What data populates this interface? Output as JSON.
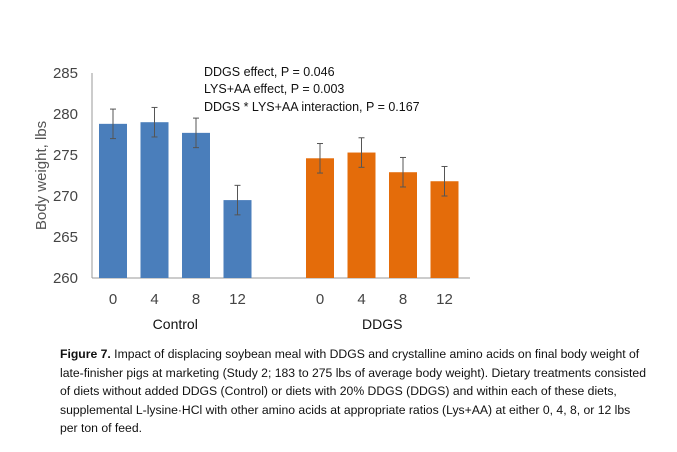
{
  "chart_data": {
    "type": "bar",
    "ylabel": "Body weight, lbs",
    "ylim": [
      260,
      285
    ],
    "yticks": [
      260,
      265,
      270,
      275,
      280,
      285
    ],
    "groups": [
      {
        "name": "Control",
        "color": "#4a7ebb",
        "categories": [
          "0",
          "4",
          "8",
          "12"
        ],
        "values": [
          278.8,
          279.0,
          277.7,
          269.5
        ],
        "errors": [
          1.8,
          1.8,
          1.8,
          1.8
        ]
      },
      {
        "name": "DDGS",
        "color": "#e46c0a",
        "categories": [
          "0",
          "4",
          "8",
          "12"
        ],
        "values": [
          274.6,
          275.3,
          272.9,
          271.8
        ],
        "errors": [
          1.8,
          1.8,
          1.8,
          1.8
        ]
      }
    ],
    "annotations": [
      "DDGS effect, P = 0.046",
      "LYS+AA effect, P = 0.003",
      "DDGS * LYS+AA interaction, P = 0.167"
    ]
  },
  "caption": {
    "label": "Figure 7.",
    "text": " Impact of displacing soybean meal with DDGS and crystalline amino acids on final body weight of late-finisher pigs at marketing (Study 2; 183 to 275 lbs of average body weight). Dietary treatments consisted of diets without added DDGS (Control) or diets with 20% DDGS (DDGS) and within each of these diets, supplemental L-lysine·HCl with other amino acids at appropriate ratios (Lys+AA) at either 0, 4, 8, or 12 lbs per ton of feed."
  }
}
